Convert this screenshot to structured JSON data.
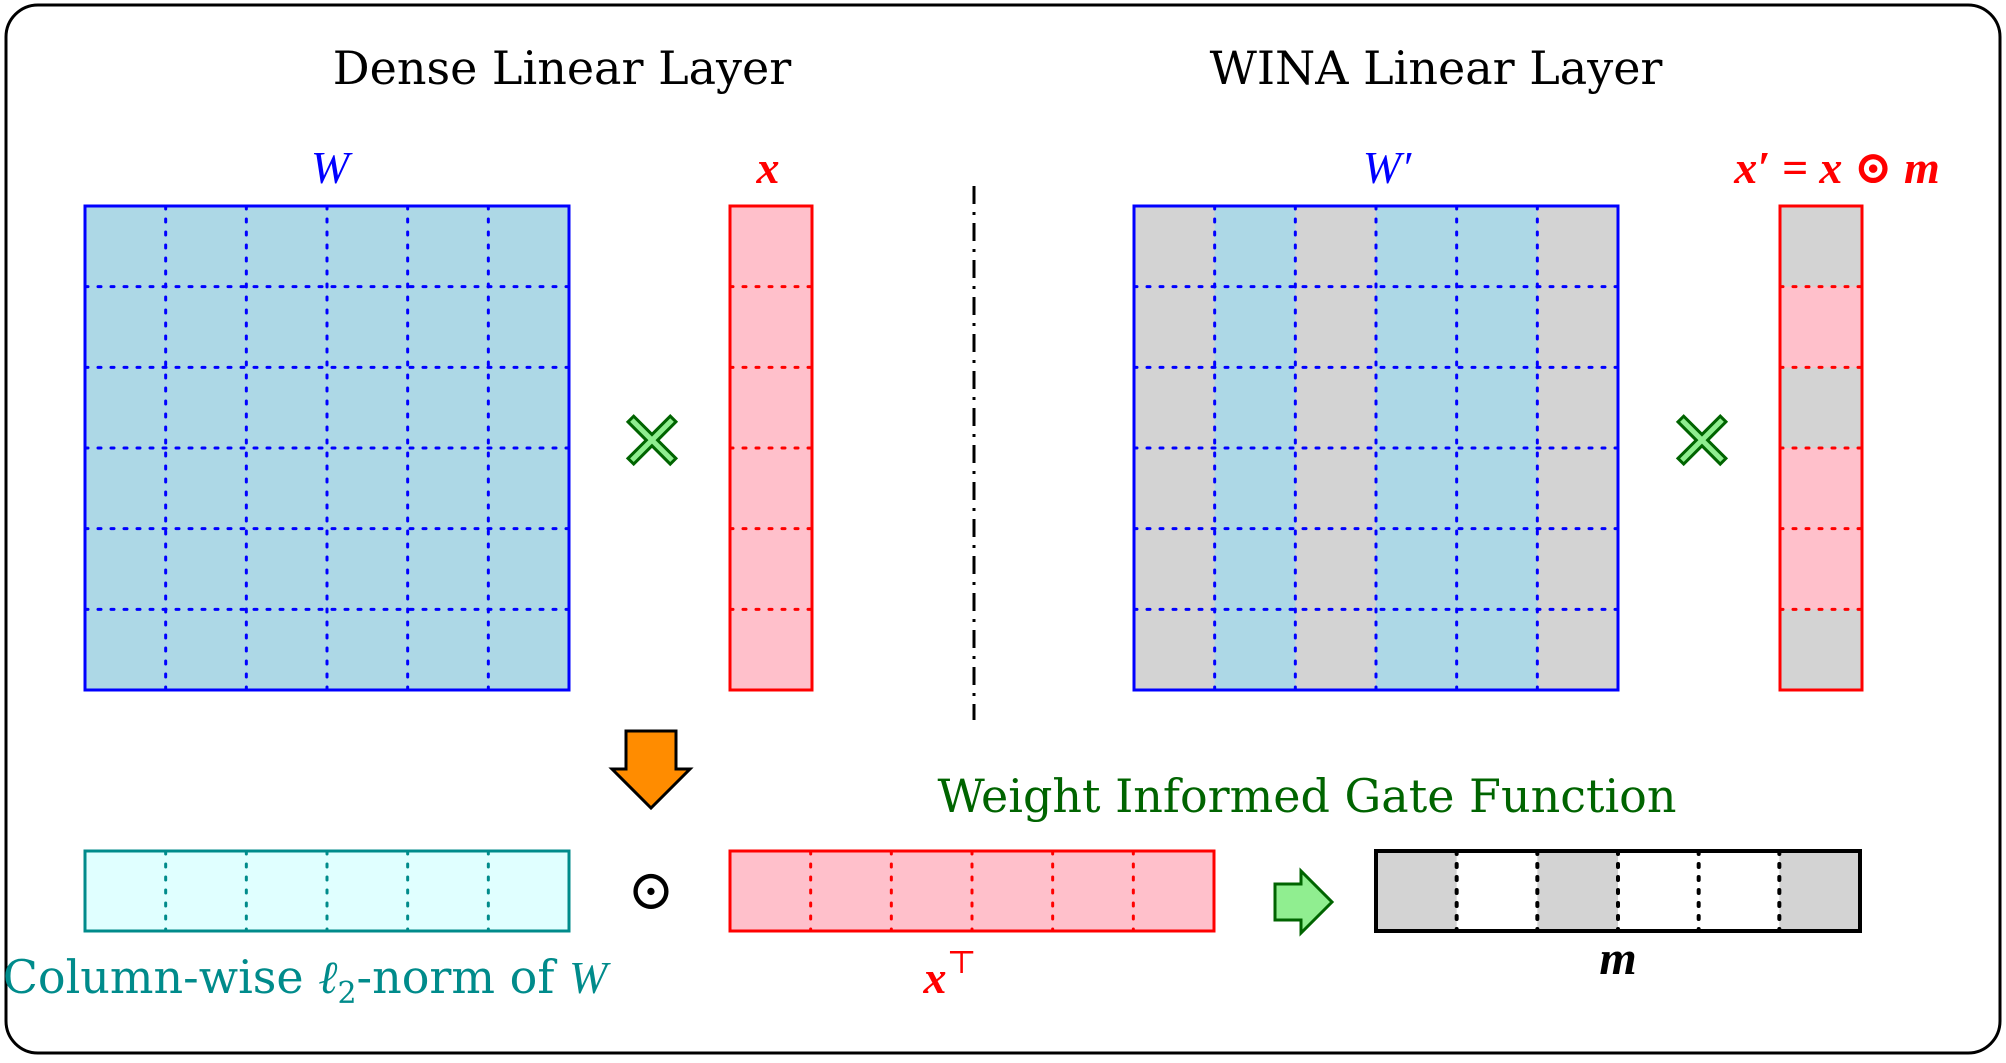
{
  "titles": {
    "left": "Dense Linear Layer",
    "right": "WINA Linear Layer"
  },
  "labels": {
    "W": "W",
    "x": "x",
    "W_prime": "W′",
    "x_prime_eq": "x′ = x ⊙ m",
    "x_transpose": "x",
    "x_transpose_sup": "⊤",
    "m": "m",
    "gate_function": "Weight Informed Gate Function",
    "colnorm_prefix": "Column-wise ",
    "colnorm_ell": "ℓ",
    "colnorm_sub": "2",
    "colnorm_suffix": "-norm of ",
    "colnorm_W": "W"
  },
  "operators": {
    "times_left": "✕",
    "times_right": "✕",
    "hadamard": "⊙"
  },
  "masks": {
    "W_prime_columns_active": [
      false,
      true,
      false,
      true,
      true,
      false
    ],
    "x_prime_rows_active": [
      false,
      true,
      false,
      true,
      true,
      false
    ],
    "m_cells_active": [
      false,
      true,
      false,
      true,
      true,
      false
    ]
  },
  "colors": {
    "blue_border": "#0000ff",
    "blue_fill": "#add8e6",
    "red_border": "#ff0000",
    "red_fill": "#ffc0cb",
    "gray_fill": "#d3d3d3",
    "teal_border": "#008b8b",
    "teal_fill": "#e0ffff",
    "teal_text": "#008b8b",
    "green_text": "#006400",
    "green_fill": "#90ee90",
    "green_border": "#006400",
    "orange_fill": "#ff8c00",
    "black": "#000000"
  }
}
